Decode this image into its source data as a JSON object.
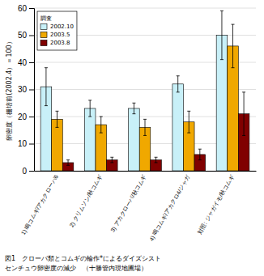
{
  "chart_data": {
    "type": "bar",
    "categories": [
      "1) 鳴コムギ/アカクローパ6",
      "2) クリムソン/秋コムギ",
      "3) アカクローパ/秋コムギ",
      "4) 鳴コムギ/アカクロ4/ジャガ",
      "対照: ジャガイモ/秋コムギ"
    ],
    "series": [
      {
        "name": "2002.10",
        "color": "#c8f0f8",
        "values": [
          31,
          23,
          23,
          32,
          50
        ],
        "errors": [
          7,
          3,
          2,
          3,
          9
        ]
      },
      {
        "name": "2003.5",
        "color": "#f0a800",
        "values": [
          19,
          17,
          16,
          18,
          46
        ],
        "errors": [
          3,
          3,
          3,
          4,
          8
        ]
      },
      {
        "name": "2003.8",
        "color": "#800000",
        "values": [
          3,
          4,
          4,
          6,
          21
        ],
        "errors": [
          1,
          1,
          1,
          2,
          8
        ]
      }
    ],
    "y_label": "卵密度（栅培前(2002.4）＝100）",
    "legend_title": "調査",
    "legend": "upper left",
    "ylim": [
      0,
      60
    ],
    "yticks": [
      0,
      10,
      20,
      30,
      40,
      50,
      60
    ],
    "grid": true,
    "annotations": [
      "図1　クローバ類とコムギの輪作*によるダイズシスト",
      "センチュウ卵密度の減少　（十勝管内現地圃場）"
    ]
  }
}
